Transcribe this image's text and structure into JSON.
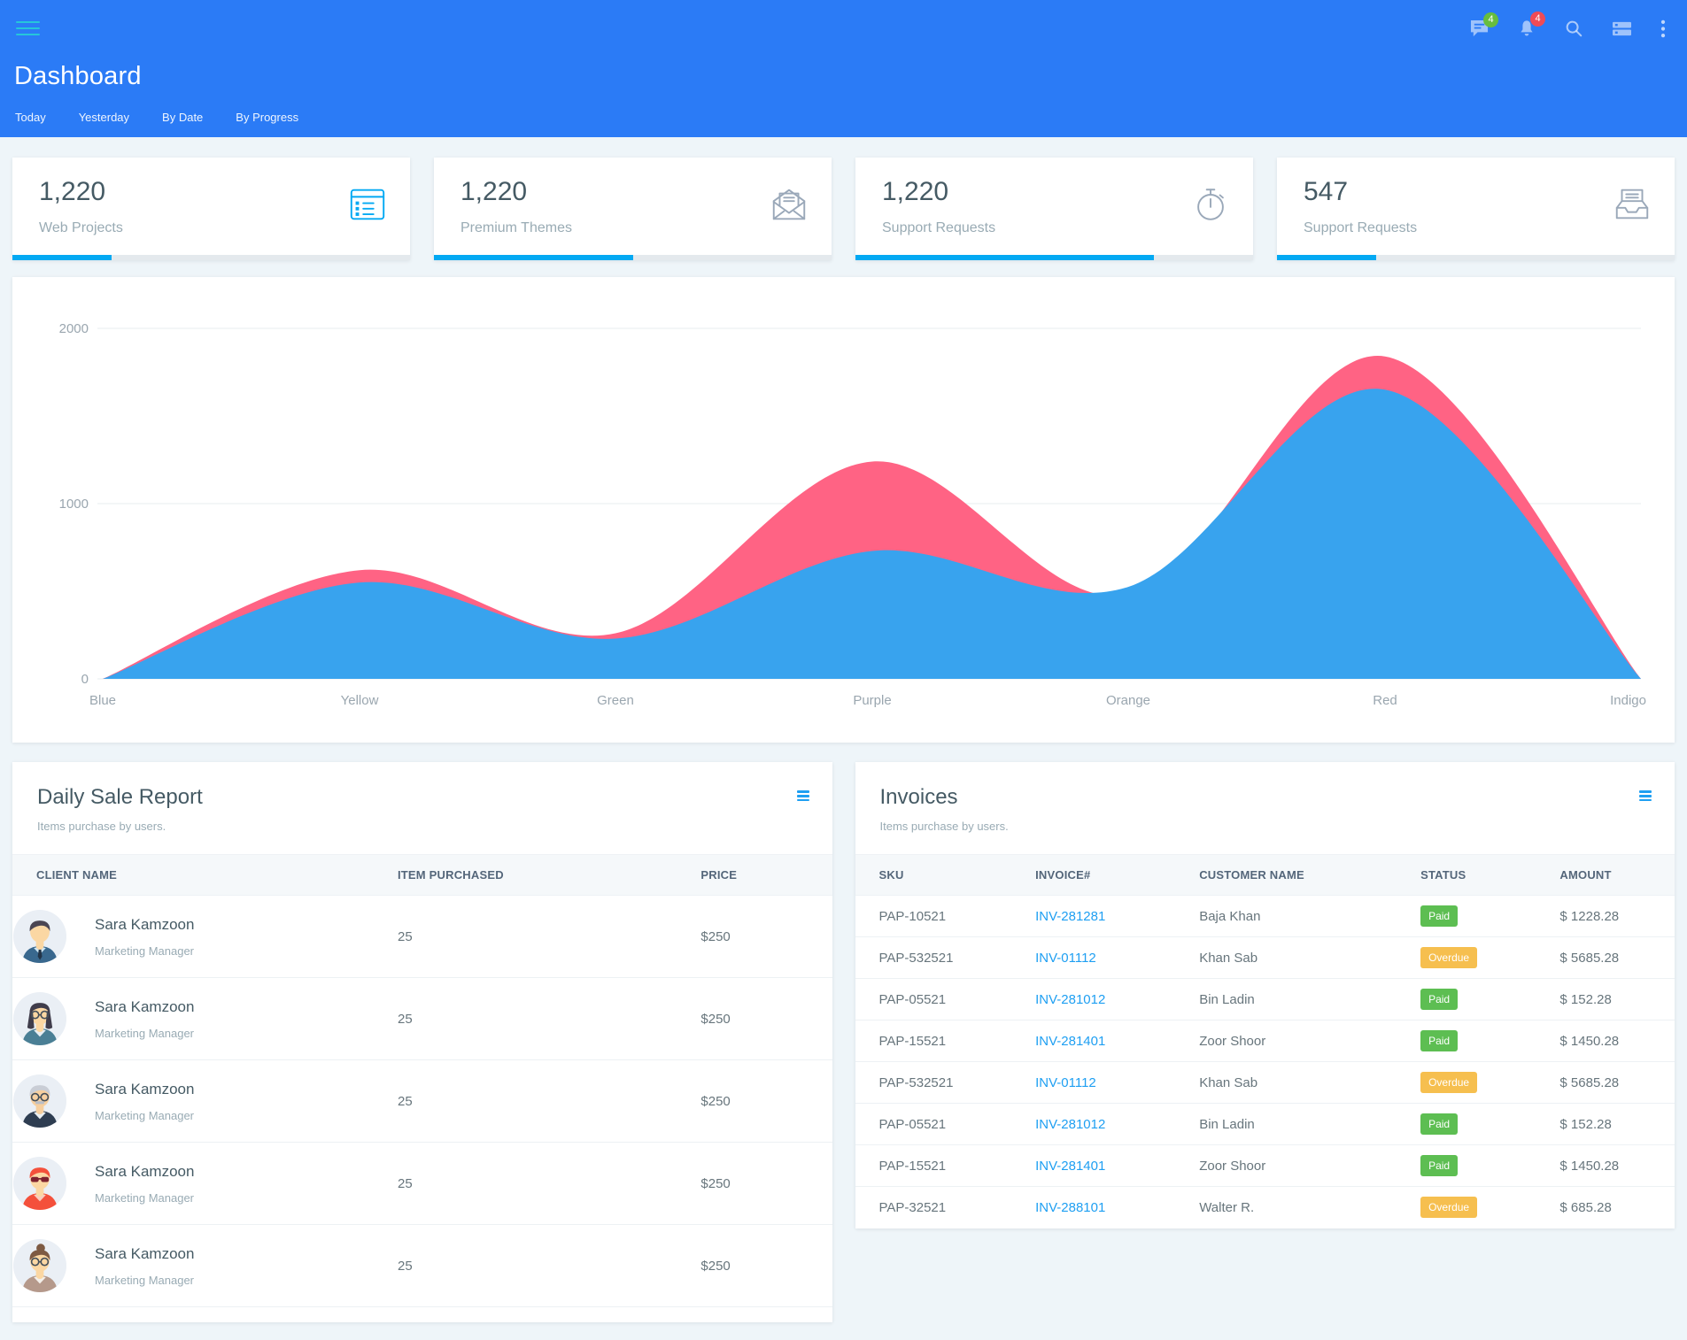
{
  "theme": {
    "header_bg": "#2b7bf6",
    "accent_blue": "#03a9f3",
    "link_blue": "#1e9ff2",
    "badge_green": "#5dbe52",
    "badge_amber": "#f6bf4f",
    "notif_green": "#67bd3e",
    "notif_red": "#ef4b56"
  },
  "header": {
    "title": "Dashboard",
    "tabs": [
      "Today",
      "Yesterday",
      "By Date",
      "By Progress"
    ],
    "messages_badge": "4",
    "notifications_badge": "4",
    "icons": [
      "messages-icon",
      "notifications-icon",
      "search-icon",
      "mega-menu-icon",
      "kebab-menu-icon"
    ]
  },
  "stats": [
    {
      "value": "1,220",
      "label": "Web Projects",
      "icon": "table-list-icon",
      "icon_color": "#03a9f3",
      "progress_pct": 25
    },
    {
      "value": "1,220",
      "label": "Premium Themes",
      "icon": "envelope-open-icon",
      "icon_color": "#9aa8b9",
      "progress_pct": 50
    },
    {
      "value": "1,220",
      "label": "Support Requests",
      "icon": "stopwatch-icon",
      "icon_color": "#9aa8b9",
      "progress_pct": 75
    },
    {
      "value": "547",
      "label": "Support Requests",
      "icon": "inbox-tray-icon",
      "icon_color": "#9aa8b9",
      "progress_pct": 25
    }
  ],
  "chart_data": {
    "type": "area",
    "x": [
      "Blue",
      "Yellow",
      "Green",
      "Purple",
      "Orange",
      "Red",
      "Indigo"
    ],
    "series": [
      {
        "name": "series-pink",
        "color": "#ff6384",
        "values": [
          0,
          620,
          260,
          1240,
          480,
          1840,
          0
        ]
      },
      {
        "name": "series-blue",
        "color": "#38a3ee",
        "values": [
          0,
          550,
          230,
          730,
          525,
          1650,
          0
        ]
      }
    ],
    "ylim": [
      0,
      2000
    ],
    "yticks": [
      0,
      1000,
      2000
    ],
    "grid": true,
    "legend": false,
    "title": "",
    "xlabel": "",
    "ylabel": ""
  },
  "daily_sale_report": {
    "title": "Daily Sale Report",
    "subtitle": "Items purchase by users.",
    "columns": [
      "CLIENT NAME",
      "ITEM PURCHASED",
      "PRICE"
    ],
    "rows": [
      {
        "name": "Sara Kamzoon",
        "role": "Marketing Manager",
        "items": "25",
        "price": "$250",
        "avatar": {
          "bg": "#eaeff5",
          "skin": "#fbd7a3",
          "hair": "#4b4653",
          "hair_style": "short",
          "shirt": "#39688e",
          "collar": "#cfe7f4",
          "tie": "#233447"
        }
      },
      {
        "name": "Sara Kamzoon",
        "role": "Marketing Manager",
        "items": "25",
        "price": "$250",
        "avatar": {
          "bg": "#eaeff5",
          "skin": "#fbd7a3",
          "hair": "#403d4b",
          "hair_style": "long",
          "shirt": "#4a7f95",
          "collar": "#e8eef2",
          "glasses": "round"
        }
      },
      {
        "name": "Sara Kamzoon",
        "role": "Marketing Manager",
        "items": "25",
        "price": "$250",
        "avatar": {
          "bg": "#eaeff5",
          "skin": "#f6cf9f",
          "hair": "#c9cdd5",
          "hair_style": "short",
          "shirt": "#2e3d51",
          "collar": "#e8eef2",
          "glasses": "round",
          "mustache": "#b9bec7"
        }
      },
      {
        "name": "Sara Kamzoon",
        "role": "Marketing Manager",
        "items": "25",
        "price": "$250",
        "avatar": {
          "bg": "#eaeff5",
          "skin": "#fbd7a3",
          "hair": "#f4503b",
          "hair_style": "short",
          "shirt": "#f4503b",
          "collar": "#f8cdbd",
          "glasses": "sun"
        }
      },
      {
        "name": "Sara Kamzoon",
        "role": "Marketing Manager",
        "items": "25",
        "price": "$250",
        "avatar": {
          "bg": "#eaeff5",
          "skin": "#fbd7a3",
          "hair": "#7d5a43",
          "hair_style": "bun",
          "shirt": "#b5998b",
          "collar": "#f3efe9",
          "glasses": "round"
        }
      }
    ]
  },
  "invoices": {
    "title": "Invoices",
    "subtitle": "Items purchase by users.",
    "columns": [
      "SKU",
      "INVOICE#",
      "CUSTOMER NAME",
      "STATUS",
      "AMOUNT"
    ],
    "rows": [
      {
        "sku": "PAP-10521",
        "invoice": "INV-281281",
        "customer": "Baja Khan",
        "status": "Paid",
        "amount": "$ 1228.28"
      },
      {
        "sku": "PAP-532521",
        "invoice": "INV-01112",
        "customer": "Khan Sab",
        "status": "Overdue",
        "amount": "$ 5685.28"
      },
      {
        "sku": "PAP-05521",
        "invoice": "INV-281012",
        "customer": "Bin Ladin",
        "status": "Paid",
        "amount": "$ 152.28"
      },
      {
        "sku": "PAP-15521",
        "invoice": "INV-281401",
        "customer": "Zoor Shoor",
        "status": "Paid",
        "amount": "$ 1450.28"
      },
      {
        "sku": "PAP-532521",
        "invoice": "INV-01112",
        "customer": "Khan Sab",
        "status": "Overdue",
        "amount": "$ 5685.28"
      },
      {
        "sku": "PAP-05521",
        "invoice": "INV-281012",
        "customer": "Bin Ladin",
        "status": "Paid",
        "amount": "$ 152.28"
      },
      {
        "sku": "PAP-15521",
        "invoice": "INV-281401",
        "customer": "Zoor Shoor",
        "status": "Paid",
        "amount": "$ 1450.28"
      },
      {
        "sku": "PAP-32521",
        "invoice": "INV-288101",
        "customer": "Walter R.",
        "status": "Overdue",
        "amount": "$ 685.28"
      }
    ]
  }
}
